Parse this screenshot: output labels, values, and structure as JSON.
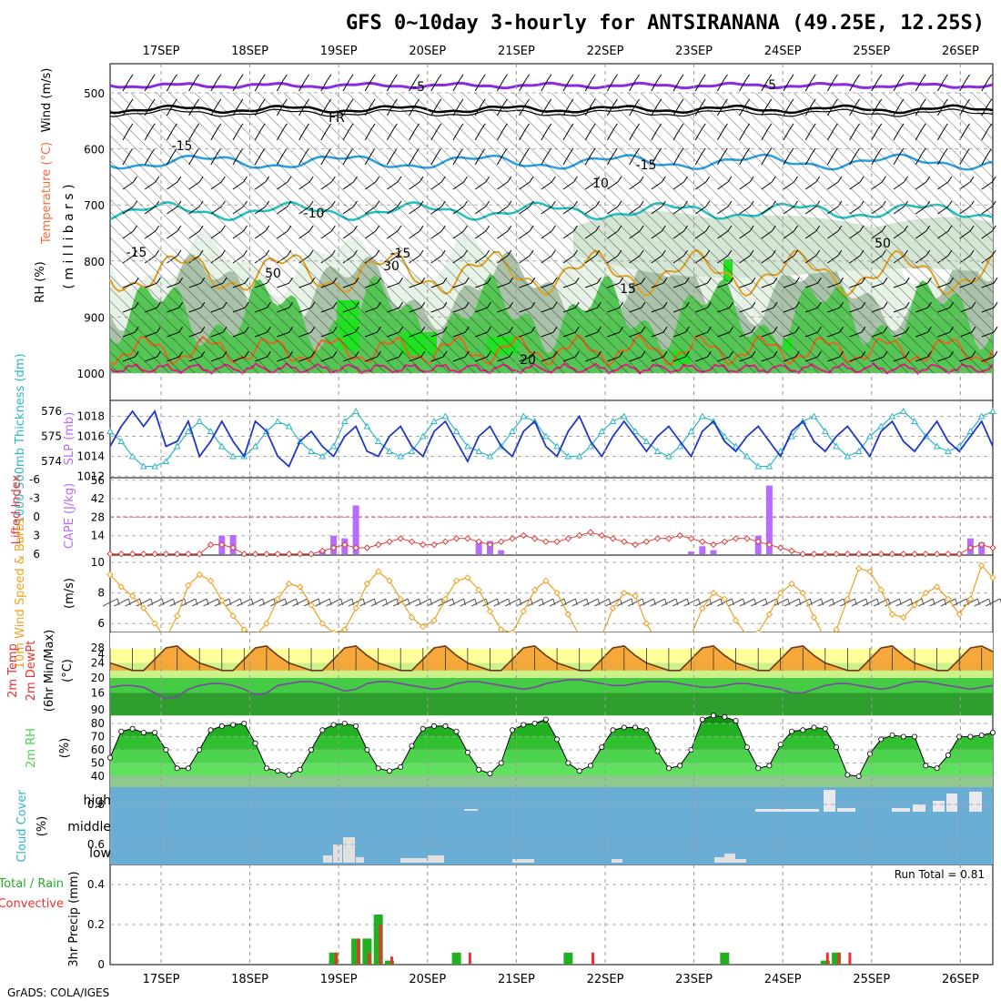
{
  "title": "GFS 0~10day 3-hourly for ANTSIRANANA (49.25E, 12.25S)",
  "credit": "GrADS: COLA/IGES",
  "dates": [
    "17SEP",
    "18SEP",
    "19SEP",
    "20SEP",
    "21SEP",
    "22SEP",
    "23SEP",
    "24SEP",
    "25SEP",
    "26SEP"
  ],
  "colors": {
    "temperature": "#ff6a3c",
    "rh": "#4bd24b",
    "wind": "#000000",
    "slp": "#1f37c9",
    "thickness": "#2fb7c4",
    "cape": "#b86bff",
    "lifted_index": "#e03c3c",
    "wind10m": "#f0a020",
    "precip_total": "#22b022",
    "precip_conv": "#f03030",
    "cloud_bg": "#6aaed6"
  },
  "panels": {
    "upper": {
      "labels": {
        "wind": "Wind (m/s)",
        "temperature": "Temperature (°C)",
        "rh": "RH (%)",
        "millibars": "( m i l l i b a r s )"
      },
      "yticks": [
        "500",
        "600",
        "700",
        "800",
        "900",
        "1000"
      ],
      "isotherm_labels": [
        "-5",
        "FR",
        "-5",
        "-10",
        "-15",
        "-15",
        "15",
        "10",
        "20",
        "50",
        "50",
        "30",
        "10"
      ]
    },
    "slp": {
      "left_label": "1000-500mb Thickness (dm)",
      "right_label": "SLP (mb)",
      "yticks_left": [
        "576",
        "575",
        "574"
      ],
      "yticks_right": [
        "1018",
        "1016",
        "1014",
        "1012"
      ]
    },
    "cape": {
      "left_label": "Lifted Index",
      "right_label": "CAPE (J/kg)",
      "yticks_left": [
        "-6",
        "-3",
        "0",
        "3",
        "6"
      ],
      "yticks_right": [
        "56",
        "42",
        "28",
        "14"
      ]
    },
    "wind": {
      "left_label": "10m Wind Speed & Barbs",
      "unit": "(m/s)",
      "yticks": [
        "10",
        "8",
        "6",
        "4"
      ]
    },
    "temp": {
      "labels": [
        "2m Temp",
        "2m DewPt",
        "(6hr Min/Max)",
        "(°C)"
      ],
      "yticks": [
        "28",
        "24",
        "20",
        "16",
        "90"
      ]
    },
    "rh": {
      "labels": [
        "2m RH",
        "(%)"
      ],
      "yticks": [
        "80",
        "70",
        "60",
        "50",
        "40"
      ]
    },
    "cloud": {
      "labels": [
        "Cloud Cover",
        "(%)"
      ],
      "levels": [
        "high",
        "middle",
        "low"
      ]
    },
    "precip": {
      "left_label1": "Total / Rain",
      "left_label2": "Convective",
      "axis_label": "3hr Precip (mm)",
      "yticks": [
        "0.8",
        "0.6",
        "0.4",
        "0.2",
        "0"
      ],
      "run_total": "Run Total = 0.81"
    }
  },
  "chart_data": [
    {
      "type": "line",
      "name": "SLP and 1000-500mb thickness",
      "series": [
        {
          "name": "SLP (mb)",
          "values": [
            1015,
            1017,
            1018.5,
            1017,
            1018.5,
            1015,
            1015.5,
            1017.5,
            1014,
            1015.5,
            1017.5,
            1015.5,
            1014,
            1017.5,
            1016.5,
            1014,
            1013,
            1015.5,
            1016.5,
            1015,
            1014,
            1016,
            1017,
            1014.5,
            1014,
            1016,
            1017,
            1015,
            1014,
            1016.5,
            1017.5,
            1015.5,
            1013.5,
            1016,
            1017,
            1015,
            1014,
            1016.5,
            1017.5,
            1015,
            1014,
            1016.5,
            1018,
            1015.5,
            1014,
            1016,
            1017.5,
            1016,
            1014.5,
            1016,
            1017,
            1015.5,
            1014,
            1016.5,
            1017.5,
            1015.5,
            1014.5,
            1016,
            1017,
            1015.5,
            1014,
            1016.5,
            1017.5,
            1015.5,
            1014.5,
            1016,
            1017,
            1015.5,
            1014,
            1016.5,
            1017.5,
            1015.5,
            1014.5,
            1016,
            1017.5,
            1015.5,
            1014.5,
            1016,
            1017.5,
            1015
          ]
        },
        {
          "name": "1000-500mb Thickness (dm)",
          "values": [
            575.2,
            574.8,
            574.2,
            573.8,
            573.8,
            574.0,
            574.6,
            575.2,
            575.6,
            575.2,
            574.6,
            574.2,
            574.2,
            574.6,
            575.2,
            575.6,
            575.4,
            574.8,
            574.4,
            574.2,
            574.6,
            575.6,
            576.0,
            575.4,
            574.8,
            574.4,
            574.2,
            574.4,
            575.0,
            575.6,
            575.8,
            575.2,
            574.6,
            574.4,
            574.2,
            574.6,
            575.2,
            575.8,
            575.6,
            575.0,
            574.6,
            574.2,
            574.2,
            574.6,
            575.2,
            575.6,
            575.8,
            575.2,
            574.8,
            574.4,
            574.2,
            574.6,
            575.2,
            575.8,
            575.6,
            575.0,
            574.6,
            574.2,
            573.8,
            573.8,
            574.4,
            575.0,
            575.6,
            575.8,
            575.2,
            574.6,
            574.2,
            574.4,
            575.0,
            575.4,
            575.8,
            576.0,
            575.6,
            575.0,
            574.6,
            574.4,
            574.6,
            575.2,
            575.8,
            576.0
          ]
        }
      ]
    },
    {
      "type": "bar",
      "name": "CAPE and Lifted Index",
      "series": [
        {
          "name": "CAPE (J/kg)",
          "values": [
            0,
            0,
            0,
            0,
            0,
            0,
            0,
            0,
            0,
            0,
            14,
            14.5,
            0,
            0,
            0,
            1,
            0,
            0,
            0,
            3,
            14,
            12,
            37,
            0,
            0,
            0,
            0,
            0,
            0,
            0,
            0,
            0,
            0,
            10,
            10,
            3,
            0,
            0,
            0,
            0,
            0,
            0,
            0,
            0,
            0,
            0,
            0,
            0,
            0,
            0,
            0,
            0,
            2,
            6,
            3,
            0,
            0,
            0,
            14,
            52,
            0,
            0,
            0,
            0,
            0,
            0,
            0,
            0,
            0,
            0,
            0,
            0,
            0,
            0,
            0,
            0,
            0,
            12,
            9,
            0
          ]
        },
        {
          "name": "Lifted Index",
          "values": [
            6,
            6,
            6,
            6,
            6,
            6,
            6,
            6,
            6,
            4.5,
            4.5,
            5,
            6,
            6,
            6,
            6,
            6,
            6,
            6,
            5.5,
            5,
            4.5,
            5,
            5,
            4.5,
            4,
            3.5,
            4,
            4.5,
            4.5,
            4,
            3.5,
            3.5,
            4,
            4.5,
            4,
            3.5,
            3,
            3.5,
            4,
            4,
            3.5,
            3,
            2.5,
            3,
            3.5,
            4,
            4.5,
            4,
            3.5,
            3.5,
            3,
            3.5,
            4,
            4.5,
            4,
            3.5,
            3.5,
            4,
            4.5,
            5,
            5.5,
            6,
            6,
            6,
            6,
            6,
            6,
            6,
            6,
            6,
            6,
            6,
            6,
            6,
            6,
            6,
            5,
            4.5,
            5
          ]
        }
      ]
    },
    {
      "type": "line",
      "name": "10m wind speed",
      "series": [
        {
          "name": "10m Wind Speed (m/s)",
          "values": [
            9.2,
            8.4,
            7.8,
            7.0,
            6.0,
            5.0,
            6.5,
            8.5,
            9.2,
            8.8,
            7.5,
            6.5,
            5.6,
            5.2,
            6.0,
            7.6,
            8.6,
            8.4,
            7.2,
            6.0,
            5.4,
            5.6,
            7.0,
            8.6,
            9.4,
            8.8,
            7.6,
            6.4,
            5.8,
            6.2,
            7.6,
            8.8,
            9.0,
            8.2,
            6.8,
            5.6,
            5.4,
            6.8,
            8.2,
            8.8,
            8.0,
            6.6,
            5.2,
            4.8,
            5.2,
            7.0,
            8.0,
            7.8,
            6.0,
            4.8,
            3.6,
            3.6,
            5.2,
            7.0,
            8.0,
            7.6,
            6.2,
            5.2,
            5.4,
            6.6,
            8.0,
            8.6,
            8.0,
            6.4,
            5.0,
            5.6,
            7.6,
            9.6,
            9.4,
            8.2,
            6.6,
            6.4,
            7.2,
            8.0,
            8.4,
            7.6,
            6.6,
            7.6,
            9.8,
            9.0
          ]
        }
      ]
    },
    {
      "type": "area",
      "name": "2m temperature and dewpoint",
      "series": [
        {
          "name": "2m Temp (°C)",
          "values": [
            24,
            23,
            22,
            22,
            25,
            28,
            28.5,
            26,
            24,
            23,
            22,
            22,
            25,
            28,
            28.5,
            26,
            24,
            23,
            22,
            22,
            25,
            28,
            28.5,
            26,
            24,
            23,
            22,
            22,
            25,
            28,
            28.5,
            26,
            24,
            23,
            22,
            22,
            25,
            28,
            28.5,
            26,
            24,
            23,
            22,
            22,
            25,
            28,
            28.5,
            26,
            24,
            23,
            22,
            22,
            25,
            28,
            28.5,
            26,
            24,
            23,
            22,
            22,
            25,
            28,
            28.5,
            26,
            24,
            23,
            22,
            22,
            25,
            28,
            28.5,
            26,
            24,
            23,
            22,
            22,
            25,
            28,
            28.5,
            27
          ]
        },
        {
          "name": "2m DewPt (°C)",
          "values": [
            17.5,
            18,
            18,
            17.5,
            16,
            14.5,
            15,
            17,
            18,
            18.5,
            18.5,
            18,
            17,
            15.5,
            16,
            18,
            18.5,
            19,
            19,
            18.5,
            17.5,
            16.5,
            17,
            18.5,
            19,
            19,
            18.5,
            18,
            17.5,
            17,
            17.5,
            18.5,
            19,
            19,
            18.5,
            18,
            17.5,
            17,
            17.5,
            18.5,
            19,
            19.5,
            19.5,
            19,
            18.5,
            18,
            18,
            18.5,
            19,
            19,
            19,
            18.5,
            18,
            17.5,
            17.5,
            18,
            18.5,
            18.5,
            18,
            17.5,
            17,
            16,
            16,
            17,
            18,
            18.5,
            18.5,
            18,
            17.5,
            17,
            17.5,
            18.5,
            19,
            19,
            18.5,
            18,
            17.5,
            17,
            17.5,
            18
          ]
        }
      ]
    },
    {
      "type": "area",
      "name": "2m relative humidity",
      "series": [
        {
          "name": "2m RH (%)",
          "values": [
            54,
            74,
            76,
            73,
            73,
            60,
            46,
            46,
            60,
            75,
            78,
            79,
            80,
            65,
            46,
            44,
            41,
            45,
            60,
            75,
            79,
            80,
            78,
            60,
            46,
            44,
            47,
            63,
            76,
            78,
            78,
            74,
            58,
            45,
            42,
            50,
            75,
            79,
            80,
            83,
            68,
            50,
            44,
            48,
            62,
            75,
            77,
            77,
            75,
            59,
            46,
            48,
            60,
            83,
            86,
            85,
            82,
            62,
            46,
            48,
            64,
            74,
            75,
            77,
            76,
            62,
            41,
            40,
            57,
            68,
            71,
            70,
            70,
            48,
            46,
            56,
            70,
            70,
            71,
            73
          ]
        }
      ]
    },
    {
      "type": "bar",
      "name": "3hr precipitation",
      "series": [
        {
          "name": "Total / Rain (mm)",
          "values": [
            0,
            0,
            0,
            0,
            0,
            0,
            0,
            0,
            0,
            0,
            0,
            0,
            0,
            0,
            0,
            0,
            0,
            0,
            0,
            0,
            0.06,
            0,
            0.13,
            0.13,
            0.25,
            0.02,
            0,
            0,
            0,
            0,
            0,
            0.06,
            0,
            0,
            0,
            0,
            0,
            0,
            0,
            0,
            0,
            0.06,
            0,
            0,
            0,
            0,
            0,
            0,
            0,
            0,
            0,
            0,
            0,
            0,
            0,
            0.06,
            0,
            0,
            0,
            0,
            0,
            0,
            0,
            0,
            0.02,
            0.06,
            0,
            0,
            0,
            0,
            0,
            0,
            0,
            0,
            0,
            0,
            0,
            0,
            0,
            0
          ]
        },
        {
          "name": "Convective (mm)",
          "values": [
            0,
            0,
            0,
            0,
            0,
            0,
            0,
            0,
            0,
            0,
            0,
            0,
            0,
            0,
            0,
            0,
            0,
            0,
            0,
            0,
            0.06,
            0,
            0.13,
            0.06,
            0.2,
            0.04,
            0,
            0,
            0,
            0,
            0,
            0,
            0.06,
            0,
            0,
            0,
            0,
            0,
            0,
            0,
            0,
            0,
            0,
            0.06,
            0,
            0,
            0,
            0,
            0,
            0,
            0,
            0,
            0,
            0,
            0,
            0,
            0,
            0,
            0,
            0,
            0,
            0,
            0,
            0,
            0.06,
            0.06,
            0.06,
            0,
            0,
            0,
            0,
            0,
            0,
            0,
            0,
            0,
            0,
            0,
            0,
            0
          ]
        }
      ]
    }
  ]
}
